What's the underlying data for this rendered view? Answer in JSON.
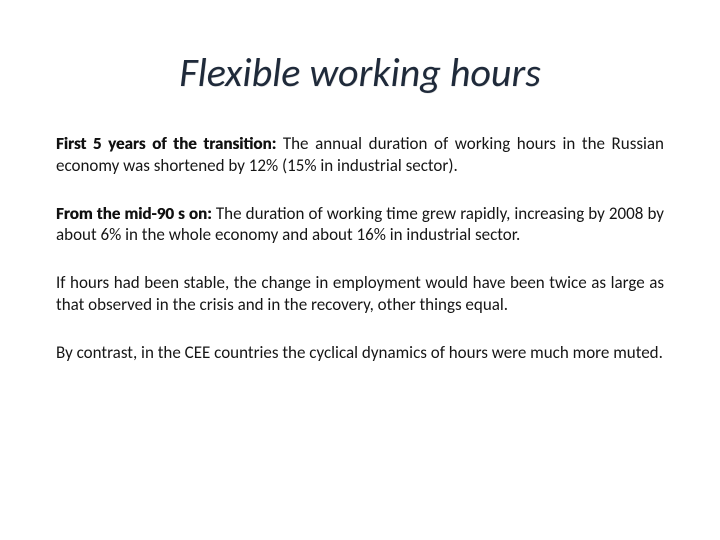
{
  "slide": {
    "title": "Flexible working hours",
    "title_color": "#1f2a3a",
    "title_fontsize": 40,
    "title_italic": true,
    "background_color": "#ffffff",
    "body_fontsize": 17,
    "body_color": "#161616",
    "paragraphs": [
      {
        "lead": "First 5 years of the transition: ",
        "body": "The annual duration of working hours in the Russian economy was shortened by 12% (15% in industrial sector).",
        "align": "justify"
      },
      {
        "lead": "From the mid-90 s on: ",
        "body": "The duration of working time grew rapidly, increasing by 2008 by about 6% in the whole economy and about 16% in industrial sector.",
        "align": "justify"
      },
      {
        "lead": "",
        "body": "If hours had been stable, the change in employment would have been twice as large as that observed in the crisis and in the recovery, other things equal.",
        "align": "justify"
      },
      {
        "lead": "",
        "body": "By contrast, in the CEE countries the cyclical dynamics of hours were much more muted.",
        "align": "left"
      }
    ]
  }
}
